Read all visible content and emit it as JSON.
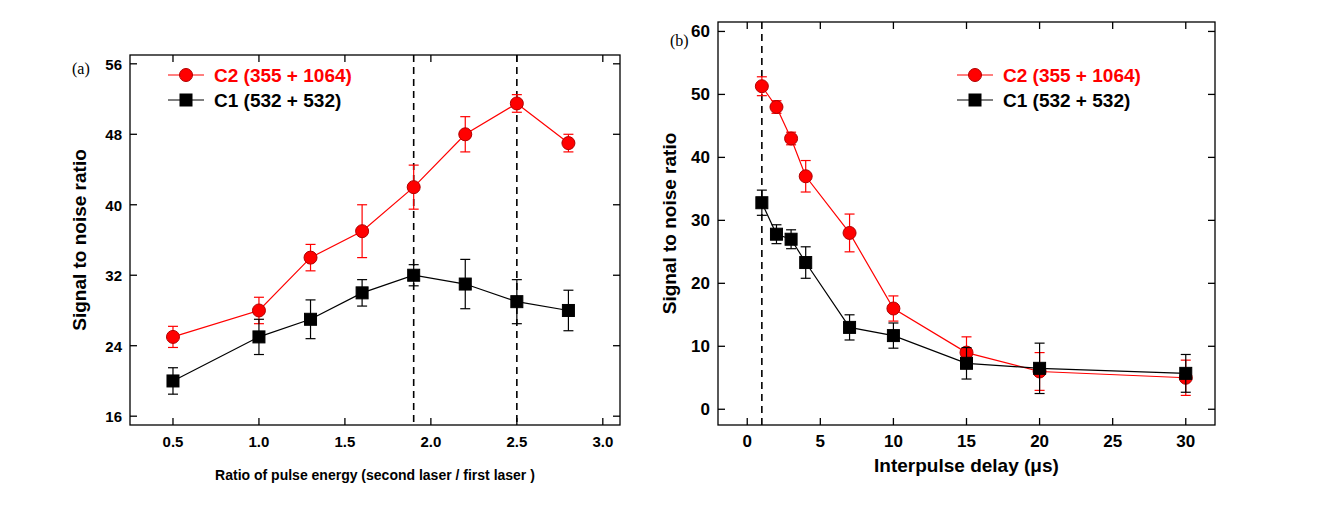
{
  "chart_data": [
    {
      "type": "line",
      "panel_label": "(a)",
      "x_label": "Ratio of pulse energy (second laser / first laser )",
      "y_label": "Signal to noise ratio",
      "x": [
        0.5,
        1.0,
        1.3,
        1.6,
        1.9,
        2.2,
        2.5,
        2.8
      ],
      "series": [
        {
          "name": "C2 (355 + 1064)",
          "color": "#ff0000",
          "marker": "circle",
          "line_style": "solid",
          "values": [
            25,
            28,
            34,
            37,
            42,
            48,
            51.5,
            47
          ],
          "errors": [
            1.2,
            1.5,
            1.5,
            3,
            2.5,
            2,
            1,
            1
          ]
        },
        {
          "name": "C1 (532 + 532)",
          "color": "#000000",
          "marker": "square",
          "line_style": "solid",
          "values": [
            20,
            25,
            27,
            30,
            32,
            31,
            29,
            28
          ],
          "errors": [
            1.5,
            2,
            2.2,
            1.5,
            1.2,
            2.8,
            2.5,
            2.3
          ]
        }
      ],
      "xlim": [
        0.25,
        3.1
      ],
      "ylim": [
        15,
        57
      ],
      "xticks": [
        0.5,
        {
          "value": 1,
          "label": "1.0"
        },
        1.5,
        {
          "value": 2,
          "label": "2.0"
        },
        2.5,
        {
          "value": 3,
          "label": "3.0"
        }
      ],
      "yticks": [
        16,
        24,
        32,
        40,
        48,
        56
      ],
      "reference_lines_x": [
        1.9,
        2.5
      ],
      "legend": "top-left",
      "grid": false
    },
    {
      "type": "line",
      "panel_label": "(b)",
      "x_label": "Interpulse delay (μs)",
      "y_label": "Signal to noise ratio",
      "x": [
        1,
        2,
        3,
        4,
        7,
        10,
        15,
        20,
        30
      ],
      "series": [
        {
          "name": "C2 (355 + 1064)",
          "color": "#ff0000",
          "marker": "circle",
          "line_style": "solid",
          "values": [
            51.3,
            48,
            43,
            37,
            28,
            16,
            9,
            6,
            5
          ],
          "errors": [
            1.5,
            1,
            1,
            2.5,
            3,
            2,
            2.5,
            3,
            2.8
          ]
        },
        {
          "name": "C1 (532 + 532)",
          "color": "#000000",
          "marker": "square",
          "line_style": "solid",
          "values": [
            32.8,
            27.8,
            27,
            23.3,
            13,
            11.7,
            7.3,
            6.5,
            5.7
          ],
          "errors": [
            2,
            1.5,
            1.5,
            2.5,
            2,
            2,
            2.5,
            4,
            3
          ]
        }
      ],
      "xlim": [
        -2,
        32
      ],
      "ylim": [
        -2.5,
        61.5
      ],
      "xticks": [
        0,
        5,
        10,
        15,
        20,
        25,
        30
      ],
      "yticks": [
        0,
        10,
        20,
        30,
        40,
        50,
        60
      ],
      "reference_lines_x": [
        1
      ],
      "legend": "top-right",
      "grid": false
    }
  ]
}
